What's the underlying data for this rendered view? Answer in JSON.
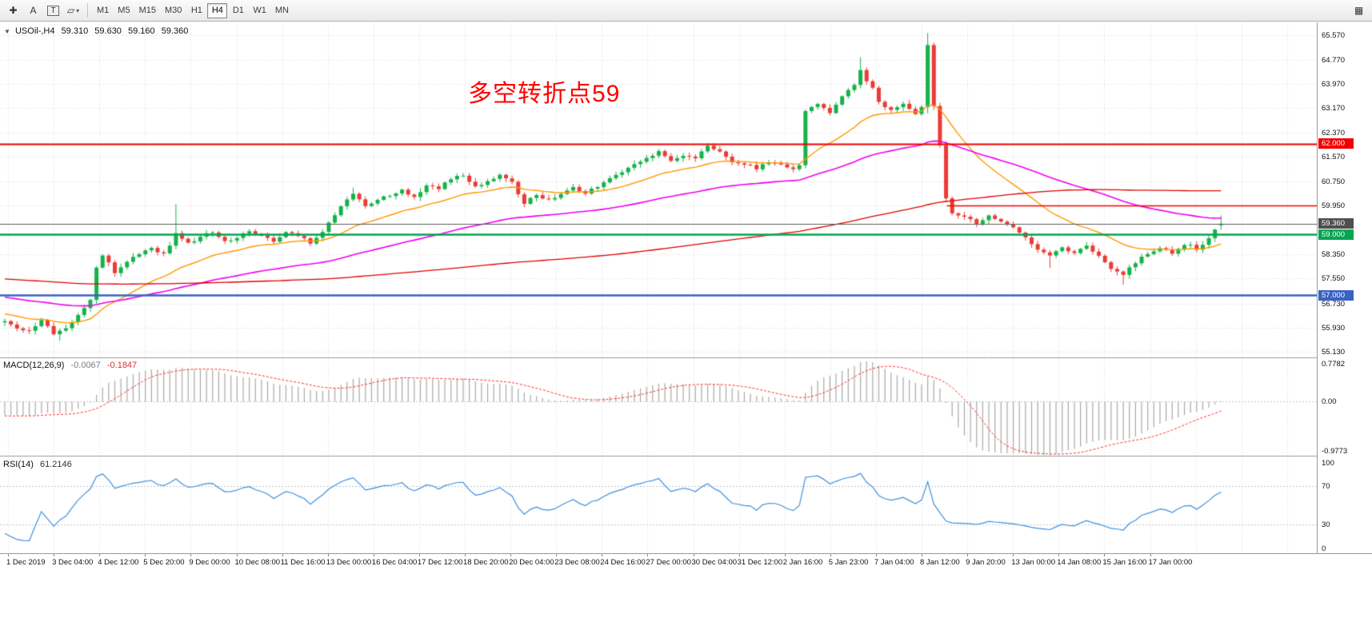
{
  "toolbar": {
    "tools": [
      {
        "name": "crosshair-tool",
        "glyph": "✚"
      },
      {
        "name": "label-tool",
        "glyph": "A"
      },
      {
        "name": "text-tool",
        "glyph": "T",
        "boxed": true
      },
      {
        "name": "shapes-tool",
        "glyph": "▱",
        "dropdown": "▾"
      }
    ],
    "timeframes": [
      "M1",
      "M5",
      "M15",
      "M30",
      "H1",
      "H4",
      "D1",
      "W1",
      "MN"
    ],
    "selected_timeframe": "H4",
    "right_icon": {
      "name": "chart-grid-icon",
      "glyph": "▦"
    }
  },
  "chart_header": {
    "marker_glyph": "▼",
    "symbol_period": "USOil-,H4",
    "open": "59.310",
    "high": "59.630",
    "low": "59.160",
    "close": "59.360"
  },
  "annotation": {
    "text": "多空转折点59",
    "color": "#ff0000"
  },
  "price_axis": {
    "ticks": [
      "65.570",
      "64.770",
      "63.970",
      "63.170",
      "62.370",
      "61.570",
      "60.750",
      "59.950",
      "58.350",
      "57.550",
      "56.730",
      "55.930",
      "55.130"
    ],
    "badges": [
      {
        "label": "62.000",
        "value": 62.0,
        "color": "#f20000"
      },
      {
        "label": "59.360",
        "value": 59.36,
        "color": "#4f4f4f"
      },
      {
        "label": "59.000",
        "value": 59.0,
        "color": "#00a651"
      },
      {
        "label": "57.000",
        "value": 57.0,
        "color": "#3a62c4"
      }
    ]
  },
  "time_axis": {
    "labels": [
      "1 Dec 2019",
      "3 Dec 04:00",
      "4 Dec 12:00",
      "5 Dec 20:00",
      "9 Dec 00:00",
      "10 Dec 08:00",
      "11 Dec 16:00",
      "13 Dec 00:00",
      "16 Dec 04:00",
      "17 Dec 12:00",
      "18 Dec 20:00",
      "20 Dec 04:00",
      "23 Dec 08:00",
      "24 Dec 16:00",
      "27 Dec 00:00",
      "30 Dec 04:00",
      "31 Dec 12:00",
      "2 Jan 16:00",
      "5 Jan 23:00",
      "7 Jan 04:00",
      "8 Jan 12:00",
      "9 Jan 20:00",
      "13 Jan 00:00",
      "14 Jan 08:00",
      "15 Jan 16:00",
      "17 Jan 00:00"
    ]
  },
  "indicators": {
    "macd": {
      "label": "MACD(12,26,9)",
      "value1": "-0.0067",
      "value2": "-0.1847",
      "axis_labels": [
        "0.7782",
        "0.00",
        "-0.9773"
      ],
      "max": 0.7782,
      "min": -0.9773,
      "hist_color": "#a8a8a8",
      "signal_color": "#ff2d2d",
      "zero_line_color": "#c6c6c6"
    },
    "rsi": {
      "label": "RSI(14)",
      "value": "61.2146",
      "axis_labels": [
        "100",
        "70",
        "30",
        "0"
      ],
      "levels": [
        70,
        30
      ],
      "min": 0,
      "max": 100,
      "color": "#3f8fdf",
      "level_color": "#bcc8d4"
    }
  },
  "chart_data": {
    "type": "candlestick",
    "symbol": "USOil-",
    "timeframe": "H4",
    "title_ohlc": {
      "open": 59.31,
      "high": 59.63,
      "low": 59.16,
      "close": 59.36
    },
    "y_range": {
      "min": 54.95,
      "max": 66.0
    },
    "candle_count": 200,
    "up_color": "#15b24a",
    "down_color": "#ea3b36",
    "grid_color": "#dcdcdc",
    "current_price": 59.36,
    "current_price_line_color": "#5c5c5c",
    "levels": [
      {
        "price": 62.0,
        "color": "#f20000",
        "width": 1.8
      },
      {
        "price": 59.0,
        "color": "#00a651",
        "width": 2.4
      },
      {
        "price": 57.0,
        "color": "#3a62c4",
        "width": 2.4
      }
    ],
    "trend_segment": {
      "price": 59.95,
      "from_frac": 0.719,
      "color": "#f20000",
      "width": 1.4
    },
    "moving_averages": [
      {
        "name": "ma-fast",
        "type": "ema",
        "period": 21,
        "color": "#ff9800",
        "width": 1.4
      },
      {
        "name": "ma-mid",
        "type": "ema",
        "period": 68,
        "color": "#ef00ef",
        "width": 1.6
      },
      {
        "name": "ma-slow",
        "type": "sma",
        "period": 160,
        "color": "#e00000",
        "width": 1.3
      }
    ],
    "seed": 20200117,
    "noise": 0.05,
    "pre_anchors": [
      [
        -160,
        57.9
      ],
      [
        -130,
        58.2
      ],
      [
        -100,
        57.5
      ],
      [
        -70,
        57.9
      ],
      [
        -45,
        57.4
      ],
      [
        -25,
        57.1
      ],
      [
        -12,
        56.5
      ],
      [
        -4,
        56.0
      ]
    ],
    "close_anchors": [
      [
        0,
        56.15
      ],
      [
        2,
        55.95
      ],
      [
        4,
        55.8
      ],
      [
        6,
        56.2
      ],
      [
        8,
        55.75
      ],
      [
        10,
        55.95
      ],
      [
        12,
        56.3
      ],
      [
        14,
        56.8
      ],
      [
        15,
        57.9
      ],
      [
        16,
        58.35
      ],
      [
        18,
        57.75
      ],
      [
        20,
        58.15
      ],
      [
        22,
        58.4
      ],
      [
        24,
        58.55
      ],
      [
        26,
        58.35
      ],
      [
        28,
        59.0
      ],
      [
        30,
        58.7
      ],
      [
        32,
        58.95
      ],
      [
        34,
        59.05
      ],
      [
        36,
        58.8
      ],
      [
        38,
        58.9
      ],
      [
        40,
        59.1
      ],
      [
        42,
        58.95
      ],
      [
        44,
        58.8
      ],
      [
        46,
        59.1
      ],
      [
        48,
        59.0
      ],
      [
        50,
        58.7
      ],
      [
        52,
        59.05
      ],
      [
        53,
        59.35
      ],
      [
        55,
        59.9
      ],
      [
        57,
        60.35
      ],
      [
        59,
        59.9
      ],
      [
        61,
        60.15
      ],
      [
        63,
        60.3
      ],
      [
        65,
        60.45
      ],
      [
        67,
        60.25
      ],
      [
        69,
        60.65
      ],
      [
        71,
        60.5
      ],
      [
        73,
        60.85
      ],
      [
        75,
        60.95
      ],
      [
        77,
        60.55
      ],
      [
        79,
        60.8
      ],
      [
        81,
        60.95
      ],
      [
        83,
        60.7
      ],
      [
        85,
        60.05
      ],
      [
        87,
        60.3
      ],
      [
        89,
        60.15
      ],
      [
        91,
        60.3
      ],
      [
        93,
        60.55
      ],
      [
        95,
        60.4
      ],
      [
        97,
        60.6
      ],
      [
        99,
        60.85
      ],
      [
        101,
        61.05
      ],
      [
        103,
        61.3
      ],
      [
        105,
        61.55
      ],
      [
        107,
        61.75
      ],
      [
        109,
        61.45
      ],
      [
        111,
        61.6
      ],
      [
        113,
        61.5
      ],
      [
        115,
        61.9
      ],
      [
        117,
        61.7
      ],
      [
        119,
        61.4
      ],
      [
        121,
        61.3
      ],
      [
        123,
        61.2
      ],
      [
        125,
        61.4
      ],
      [
        127,
        61.3
      ],
      [
        129,
        61.15
      ],
      [
        130,
        61.25
      ],
      [
        131,
        63.1
      ],
      [
        133,
        63.3
      ],
      [
        135,
        63.05
      ],
      [
        137,
        63.55
      ],
      [
        139,
        63.95
      ],
      [
        140,
        64.4
      ],
      [
        141,
        64.1
      ],
      [
        142,
        63.85
      ],
      [
        143,
        63.4
      ],
      [
        145,
        63.1
      ],
      [
        147,
        63.3
      ],
      [
        149,
        63.0
      ],
      [
        150,
        63.2
      ],
      [
        151,
        65.25
      ],
      [
        152,
        63.2
      ],
      [
        153,
        61.9
      ],
      [
        154,
        60.15
      ],
      [
        155,
        59.75
      ],
      [
        157,
        59.55
      ],
      [
        159,
        59.4
      ],
      [
        161,
        59.6
      ],
      [
        163,
        59.45
      ],
      [
        165,
        59.25
      ],
      [
        167,
        58.9
      ],
      [
        169,
        58.5
      ],
      [
        171,
        58.3
      ],
      [
        173,
        58.6
      ],
      [
        175,
        58.4
      ],
      [
        177,
        58.65
      ],
      [
        179,
        58.3
      ],
      [
        181,
        57.9
      ],
      [
        183,
        57.65
      ],
      [
        185,
        58.1
      ],
      [
        187,
        58.35
      ],
      [
        189,
        58.55
      ],
      [
        191,
        58.4
      ],
      [
        193,
        58.7
      ],
      [
        195,
        58.55
      ],
      [
        197,
        58.85
      ],
      [
        198,
        59.15
      ],
      [
        199,
        59.36
      ]
    ],
    "overrides": {
      "9": {
        "low": 55.5
      },
      "28": {
        "high": 60.0
      },
      "57": {
        "high": 60.55
      },
      "140": {
        "high": 64.85
      },
      "151": {
        "high": 65.65,
        "low": 63.0
      },
      "171": {
        "low": 57.9
      },
      "183": {
        "low": 57.35
      },
      "199": {
        "open": 59.31,
        "high": 59.63,
        "low": 59.16,
        "close": 59.36
      }
    }
  }
}
